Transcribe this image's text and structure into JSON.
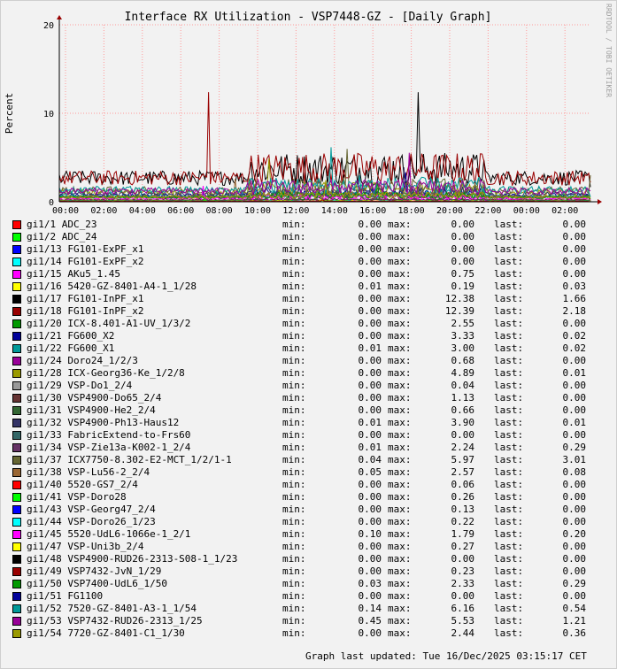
{
  "chart_data": {
    "type": "line",
    "title": "Interface RX Utilization - VSP7448-GZ - [Daily Graph]",
    "ylabel": "Percent",
    "xlabel": "",
    "ylim": [
      0,
      20
    ],
    "y_ticks": [
      "0",
      "10",
      "20"
    ],
    "x_ticks": [
      "00:00",
      "02:00",
      "04:00",
      "06:00",
      "08:00",
      "10:00",
      "12:00",
      "14:00",
      "16:00",
      "18:00",
      "20:00",
      "22:00",
      "00:00",
      "02:00"
    ],
    "grid": true,
    "watermark": "RRDTOOL / TOBI OETIKER",
    "legend_placement": "bottom",
    "stat_labels": {
      "min": "min:",
      "max": "max:",
      "last": "last:"
    },
    "series": [
      {
        "name": "gi1/1 ADC_23",
        "color": "#ff0000",
        "min": "0.00",
        "max": "0.00",
        "last": "0.00"
      },
      {
        "name": "gi1/2 ADC_24",
        "color": "#00ff00",
        "min": "0.00",
        "max": "0.00",
        "last": "0.00"
      },
      {
        "name": "gi1/13 FG101-ExPF_x1",
        "color": "#0000ff",
        "min": "0.00",
        "max": "0.00",
        "last": "0.00"
      },
      {
        "name": "gi1/14 FG101-ExPF_x2",
        "color": "#00ffff",
        "min": "0.00",
        "max": "0.00",
        "last": "0.00"
      },
      {
        "name": "gi1/15 AKu5_1.45",
        "color": "#ff00ff",
        "min": "0.00",
        "max": "0.75",
        "last": "0.00"
      },
      {
        "name": "gi1/16 5420-GZ-8401-A4-1_1/28",
        "color": "#ffff00",
        "min": "0.01",
        "max": "0.19",
        "last": "0.03"
      },
      {
        "name": "gi1/17 FG101-InPF_x1",
        "color": "#000000",
        "min": "0.00",
        "max": "12.38",
        "last": "1.66"
      },
      {
        "name": "gi1/18 FG101-InPF_x2",
        "color": "#990000",
        "min": "0.00",
        "max": "12.39",
        "last": "2.18"
      },
      {
        "name": "gi1/20 ICX-8.401-A1-UV_1/3/2",
        "color": "#009900",
        "min": "0.00",
        "max": "2.55",
        "last": "0.00"
      },
      {
        "name": "gi1/21 FG600_X2",
        "color": "#000099",
        "min": "0.00",
        "max": "3.33",
        "last": "0.02"
      },
      {
        "name": "gi1/22 FG600_X1",
        "color": "#009999",
        "min": "0.01",
        "max": "3.00",
        "last": "0.02"
      },
      {
        "name": "gi1/24 Doro24_1/2/3",
        "color": "#990099",
        "min": "0.00",
        "max": "0.68",
        "last": "0.00"
      },
      {
        "name": "gi1/28 ICX-Georg36-Ke_1/2/8",
        "color": "#999900",
        "min": "0.00",
        "max": "4.89",
        "last": "0.01"
      },
      {
        "name": "gi1/29 VSP-Do1_2/4",
        "color": "#999999",
        "min": "0.00",
        "max": "0.04",
        "last": "0.00"
      },
      {
        "name": "gi1/30 VSP4900-Do65_2/4",
        "color": "#663333",
        "min": "0.00",
        "max": "1.13",
        "last": "0.00"
      },
      {
        "name": "gi1/31 VSP4900-He2_2/4",
        "color": "#336633",
        "min": "0.00",
        "max": "0.66",
        "last": "0.00"
      },
      {
        "name": "gi1/32 VSP4900-Ph13-Haus12",
        "color": "#333366",
        "min": "0.01",
        "max": "3.90",
        "last": "0.01"
      },
      {
        "name": "gi1/33 FabricExtend-to-Frs60",
        "color": "#336666",
        "min": "0.00",
        "max": "0.00",
        "last": "0.00"
      },
      {
        "name": "gi1/34 VSP-Zie13a-K002-1_2/4",
        "color": "#663366",
        "min": "0.01",
        "max": "2.24",
        "last": "0.29"
      },
      {
        "name": "gi1/37 ICX7750-8.302-E2-MCT_1/2/1-1",
        "color": "#666633",
        "min": "0.04",
        "max": "5.97",
        "last": "3.01"
      },
      {
        "name": "gi1/38 VSP-Lu56-2_2/4",
        "color": "#996633",
        "min": "0.05",
        "max": "2.57",
        "last": "0.08"
      },
      {
        "name": "gi1/40 5520-GS7_2/4",
        "color": "#ff0000",
        "min": "0.00",
        "max": "0.06",
        "last": "0.00"
      },
      {
        "name": "gi1/41 VSP-Doro28",
        "color": "#00ff00",
        "min": "0.00",
        "max": "0.26",
        "last": "0.00"
      },
      {
        "name": "gi1/43 VSP-Georg47_2/4",
        "color": "#0000ff",
        "min": "0.00",
        "max": "0.13",
        "last": "0.00"
      },
      {
        "name": "gi1/44 VSP-Doro26_1/23",
        "color": "#00ffff",
        "min": "0.00",
        "max": "0.22",
        "last": "0.00"
      },
      {
        "name": "gi1/45 5520-UdL6-1066e-1_2/1",
        "color": "#ff00ff",
        "min": "0.10",
        "max": "1.79",
        "last": "0.20"
      },
      {
        "name": "gi1/47 VSP-Uni3b_2/4",
        "color": "#ffff00",
        "min": "0.00",
        "max": "0.27",
        "last": "0.00"
      },
      {
        "name": "gi1/48 VSP4900-RUD26-2313-S08-1_1/23",
        "color": "#000000",
        "min": "0.00",
        "max": "0.00",
        "last": "0.00"
      },
      {
        "name": "gi1/49 VSP7432-JvN_1/29",
        "color": "#990000",
        "min": "0.00",
        "max": "0.23",
        "last": "0.00"
      },
      {
        "name": "gi1/50 VSP7400-UdL6_1/50",
        "color": "#009900",
        "min": "0.03",
        "max": "2.33",
        "last": "0.29"
      },
      {
        "name": "gi1/51 FG1100",
        "color": "#000099",
        "min": "0.00",
        "max": "0.00",
        "last": "0.00"
      },
      {
        "name": "gi1/52 7520-GZ-8401-A3-1_1/54",
        "color": "#009999",
        "min": "0.14",
        "max": "6.16",
        "last": "0.54"
      },
      {
        "name": "gi1/53 VSP7432-RUD26-2313_1/25",
        "color": "#990099",
        "min": "0.45",
        "max": "5.53",
        "last": "1.21"
      },
      {
        "name": "gi1/54 7720-GZ-8401-C1_1/30",
        "color": "#999900",
        "min": "0.00",
        "max": "2.44",
        "last": "0.36"
      }
    ]
  },
  "footer": {
    "updated": "Graph last updated: Tue 16/Dec/2025 03:15:17 CET"
  }
}
